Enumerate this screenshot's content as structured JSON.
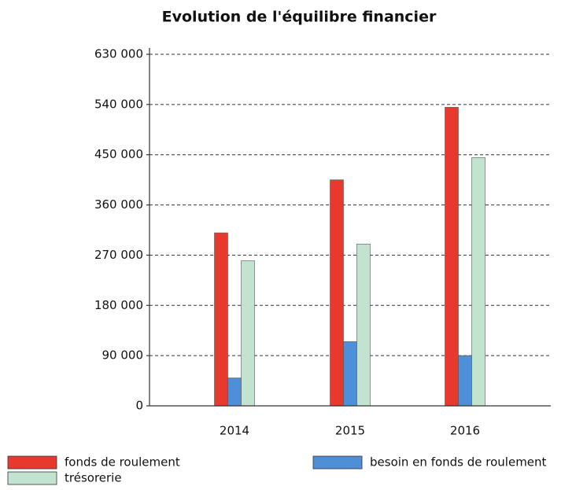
{
  "chart_data": {
    "type": "bar",
    "title": "Evolution de l'équilibre financier",
    "categories": [
      "2014",
      "2015",
      "2016"
    ],
    "series": [
      {
        "name": "fonds de roulement",
        "color": "#e8392e",
        "values": [
          310000,
          405000,
          535000
        ]
      },
      {
        "name": "besoin en fonds de roulement",
        "color": "#4f8fd8",
        "values": [
          50000,
          115000,
          90000
        ]
      },
      {
        "name": "trésorerie",
        "color": "#c2e3cf",
        "values": [
          260000,
          290000,
          445000
        ]
      }
    ],
    "ylim": [
      0,
      630000
    ],
    "yticks": [
      0,
      {
        "value": 90000,
        "label": "90 000"
      },
      {
        "value": 180000,
        "label": "180 000"
      },
      {
        "value": 270000,
        "label": "270 000"
      },
      {
        "value": 360000,
        "label": "360 000"
      },
      {
        "value": 450000,
        "label": "450 000"
      },
      {
        "value": 540000,
        "label": "540 000"
      },
      {
        "value": 630000,
        "label": "630 000"
      }
    ],
    "grid": true
  }
}
